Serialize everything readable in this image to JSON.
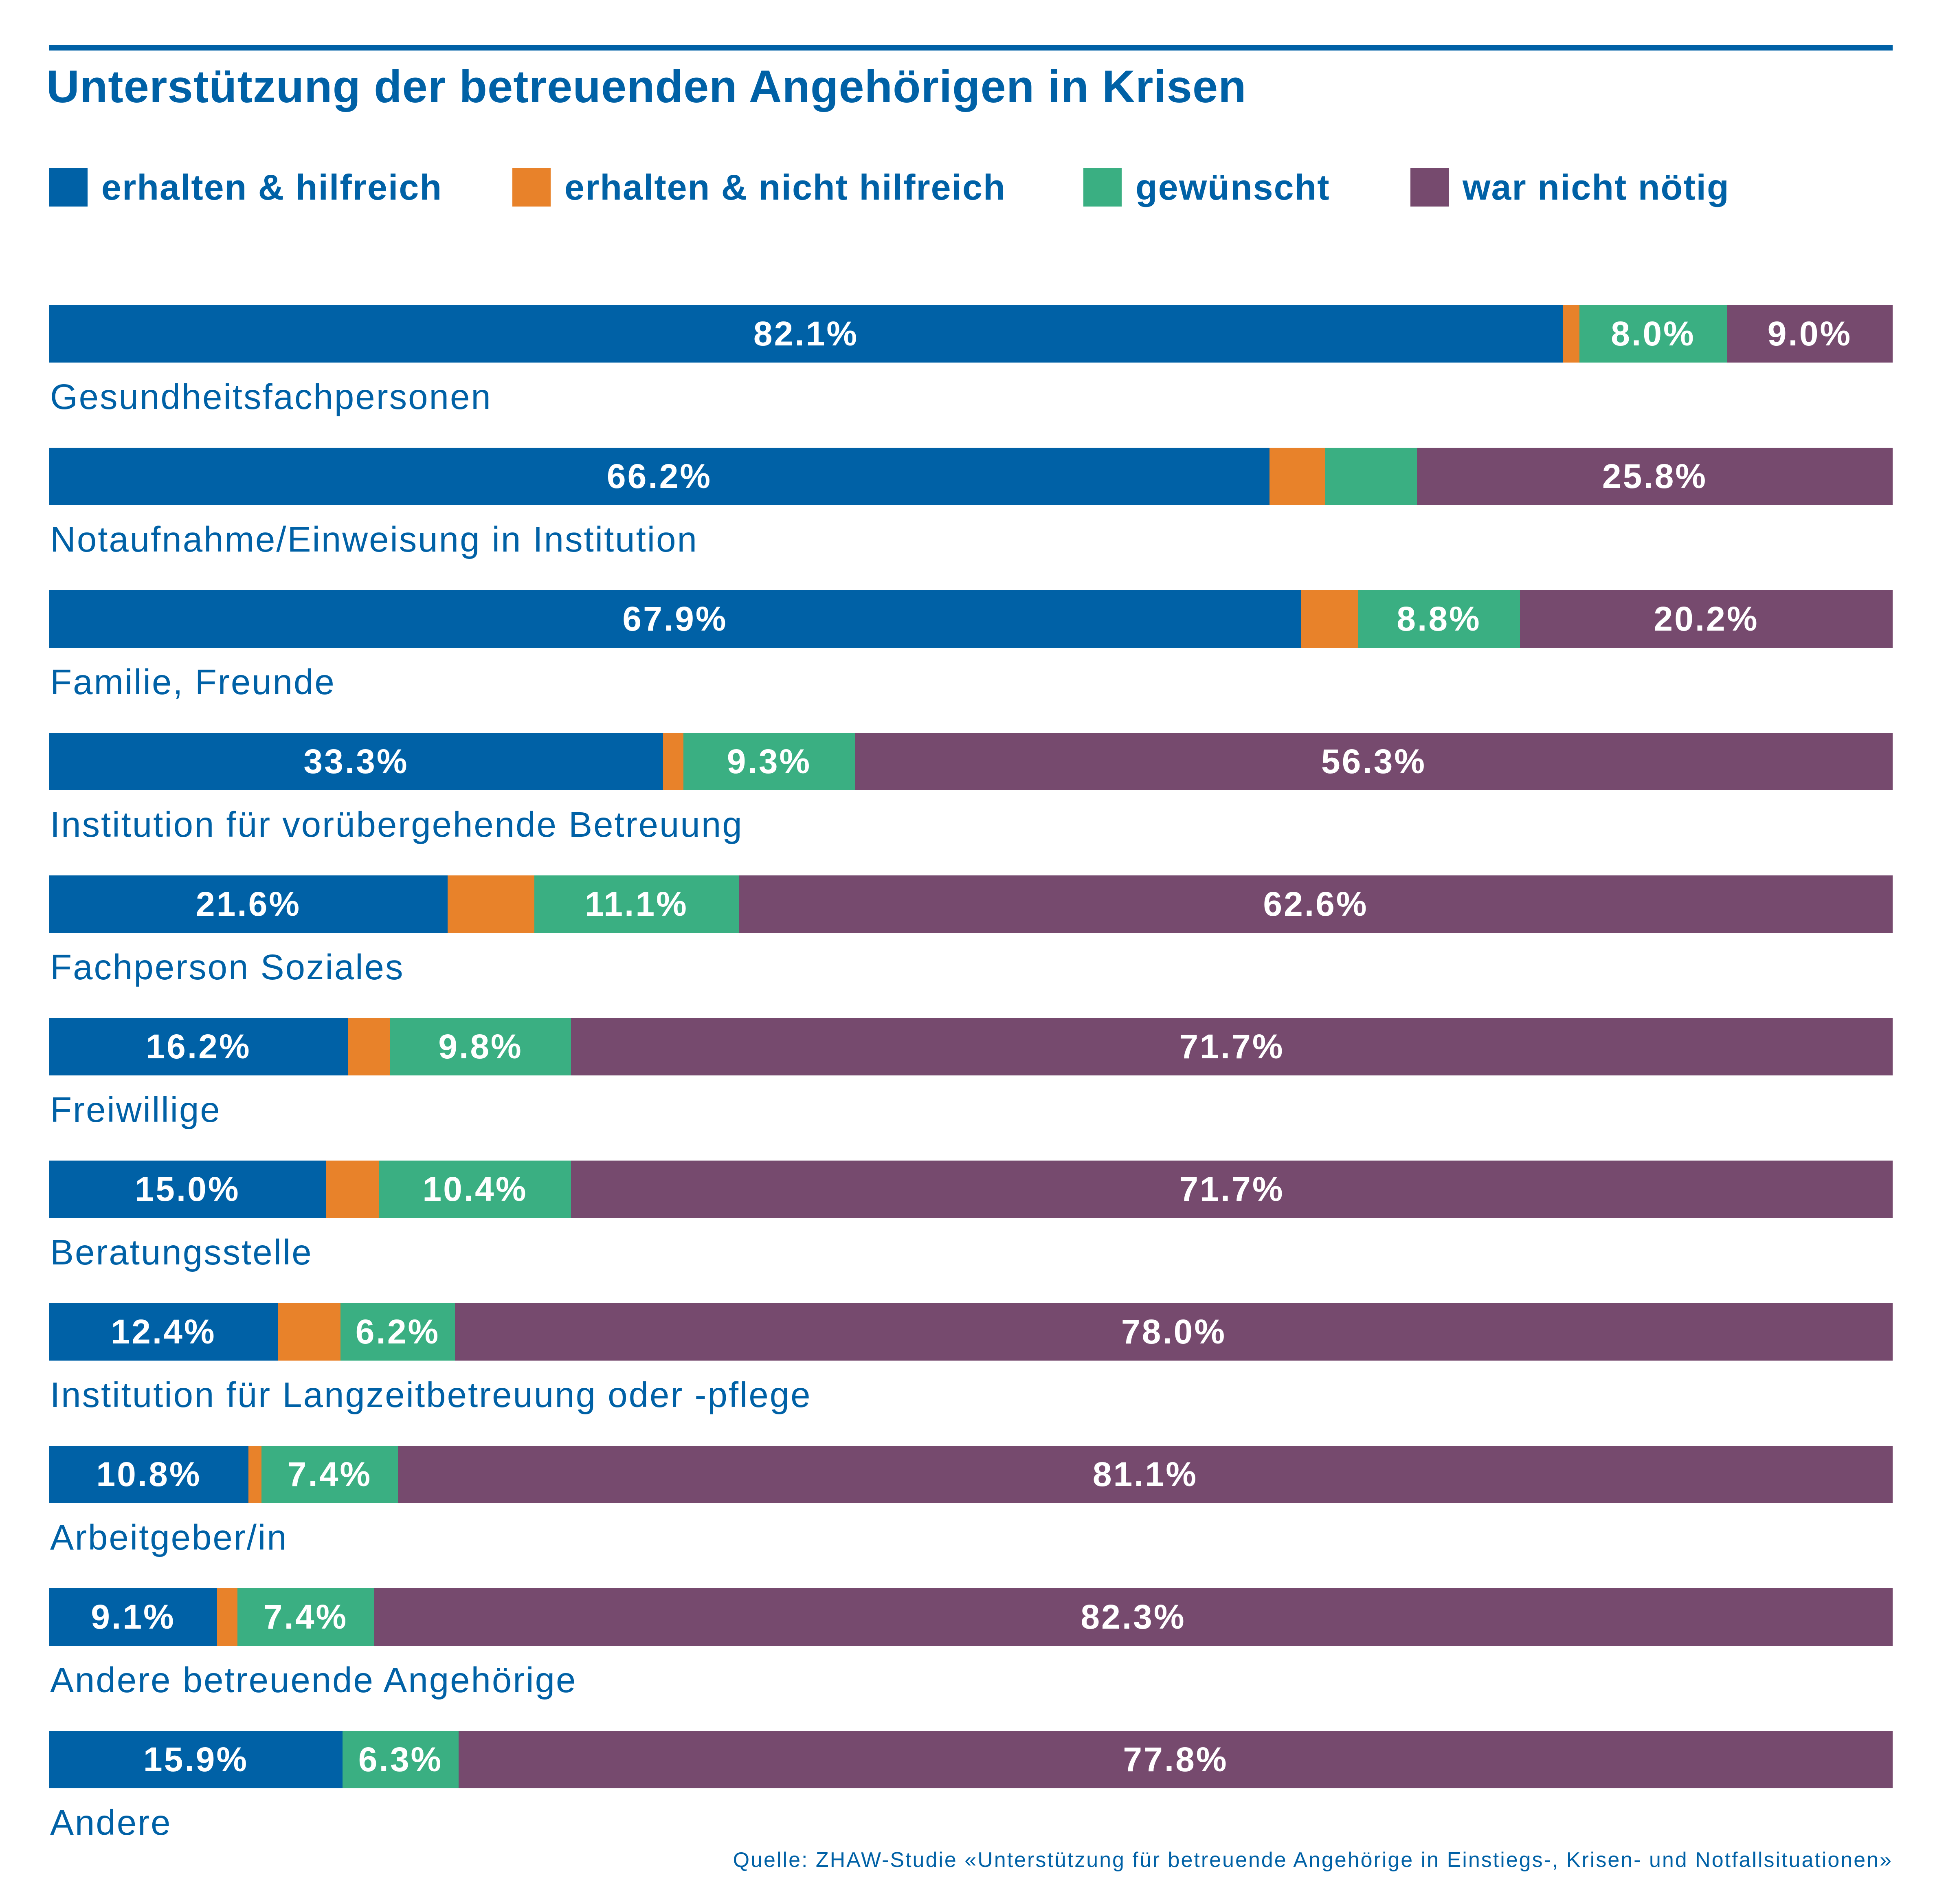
{
  "colors": {
    "erhalten_hilfreich": "#0061a6",
    "erhalten_nicht_hilfreich": "#e8822a",
    "gewuenscht": "#3aaf82",
    "nicht_noetig": "#764a6e",
    "text": "#0061a6"
  },
  "source": "Quelle: ZHAW-Studie «Unterstützung für betreuende Angehörige in Einstiegs-, Krisen- und Notfallsituationen»",
  "chart_data": {
    "type": "bar",
    "orientation": "horizontal",
    "stacked": true,
    "title": "Unterstützung der betreuenden Angehörigen in Krisen",
    "legend_position": "top",
    "grid": false,
    "xlim": [
      0,
      100
    ],
    "categories": [
      "Gesundheitsfachpersonen",
      "Notaufnahme/Einweisung in Institution",
      "Familie, Freunde",
      "Institution für vorübergehende Betreuung",
      "Fachperson Soziales",
      "Freiwillige",
      "Beratungsstelle",
      "Institution für Langzeitbetreuung oder -pflege",
      "Arbeitgeber/in",
      "Andere betreuende Angehörige",
      "Andere"
    ],
    "series": [
      {
        "name": "erhalten & hilfreich",
        "color": "#0061a6",
        "values": [
          82.1,
          66.2,
          67.9,
          33.3,
          21.6,
          16.2,
          15.0,
          12.4,
          10.8,
          9.1,
          15.9
        ],
        "labels": [
          "82.1%",
          "66.2%",
          "67.9%",
          "33.3%",
          "21.6%",
          "16.2%",
          "15.0%",
          "12.4%",
          "10.8%",
          "9.1%",
          "15.9%"
        ]
      },
      {
        "name": "erhalten & nicht hilfreich",
        "color": "#e8822a",
        "values": [
          0.9,
          3.0,
          3.1,
          1.1,
          4.7,
          2.3,
          2.9,
          3.4,
          0.7,
          1.1,
          0.0
        ],
        "labels": [
          "",
          "",
          "",
          "",
          "",
          "",
          "",
          "",
          "",
          "",
          ""
        ]
      },
      {
        "name": "gewünscht",
        "color": "#3aaf82",
        "values": [
          8.0,
          5.0,
          8.8,
          9.3,
          11.1,
          9.8,
          10.4,
          6.2,
          7.4,
          7.4,
          6.3
        ],
        "labels": [
          "8.0%",
          "",
          "8.8%",
          "9.3%",
          "11.1%",
          "9.8%",
          "10.4%",
          "6.2%",
          "7.4%",
          "7.4%",
          "6.3%"
        ]
      },
      {
        "name": "war nicht nötig",
        "color": "#764a6e",
        "values": [
          9.0,
          25.8,
          20.2,
          56.3,
          62.6,
          71.7,
          71.7,
          78.0,
          81.1,
          82.3,
          77.8
        ],
        "labels": [
          "9.0%",
          "25.8%",
          "20.2%",
          "56.3%",
          "62.6%",
          "71.7%",
          "71.7%",
          "78.0%",
          "81.1%",
          "82.3%",
          "77.8%"
        ]
      }
    ]
  }
}
